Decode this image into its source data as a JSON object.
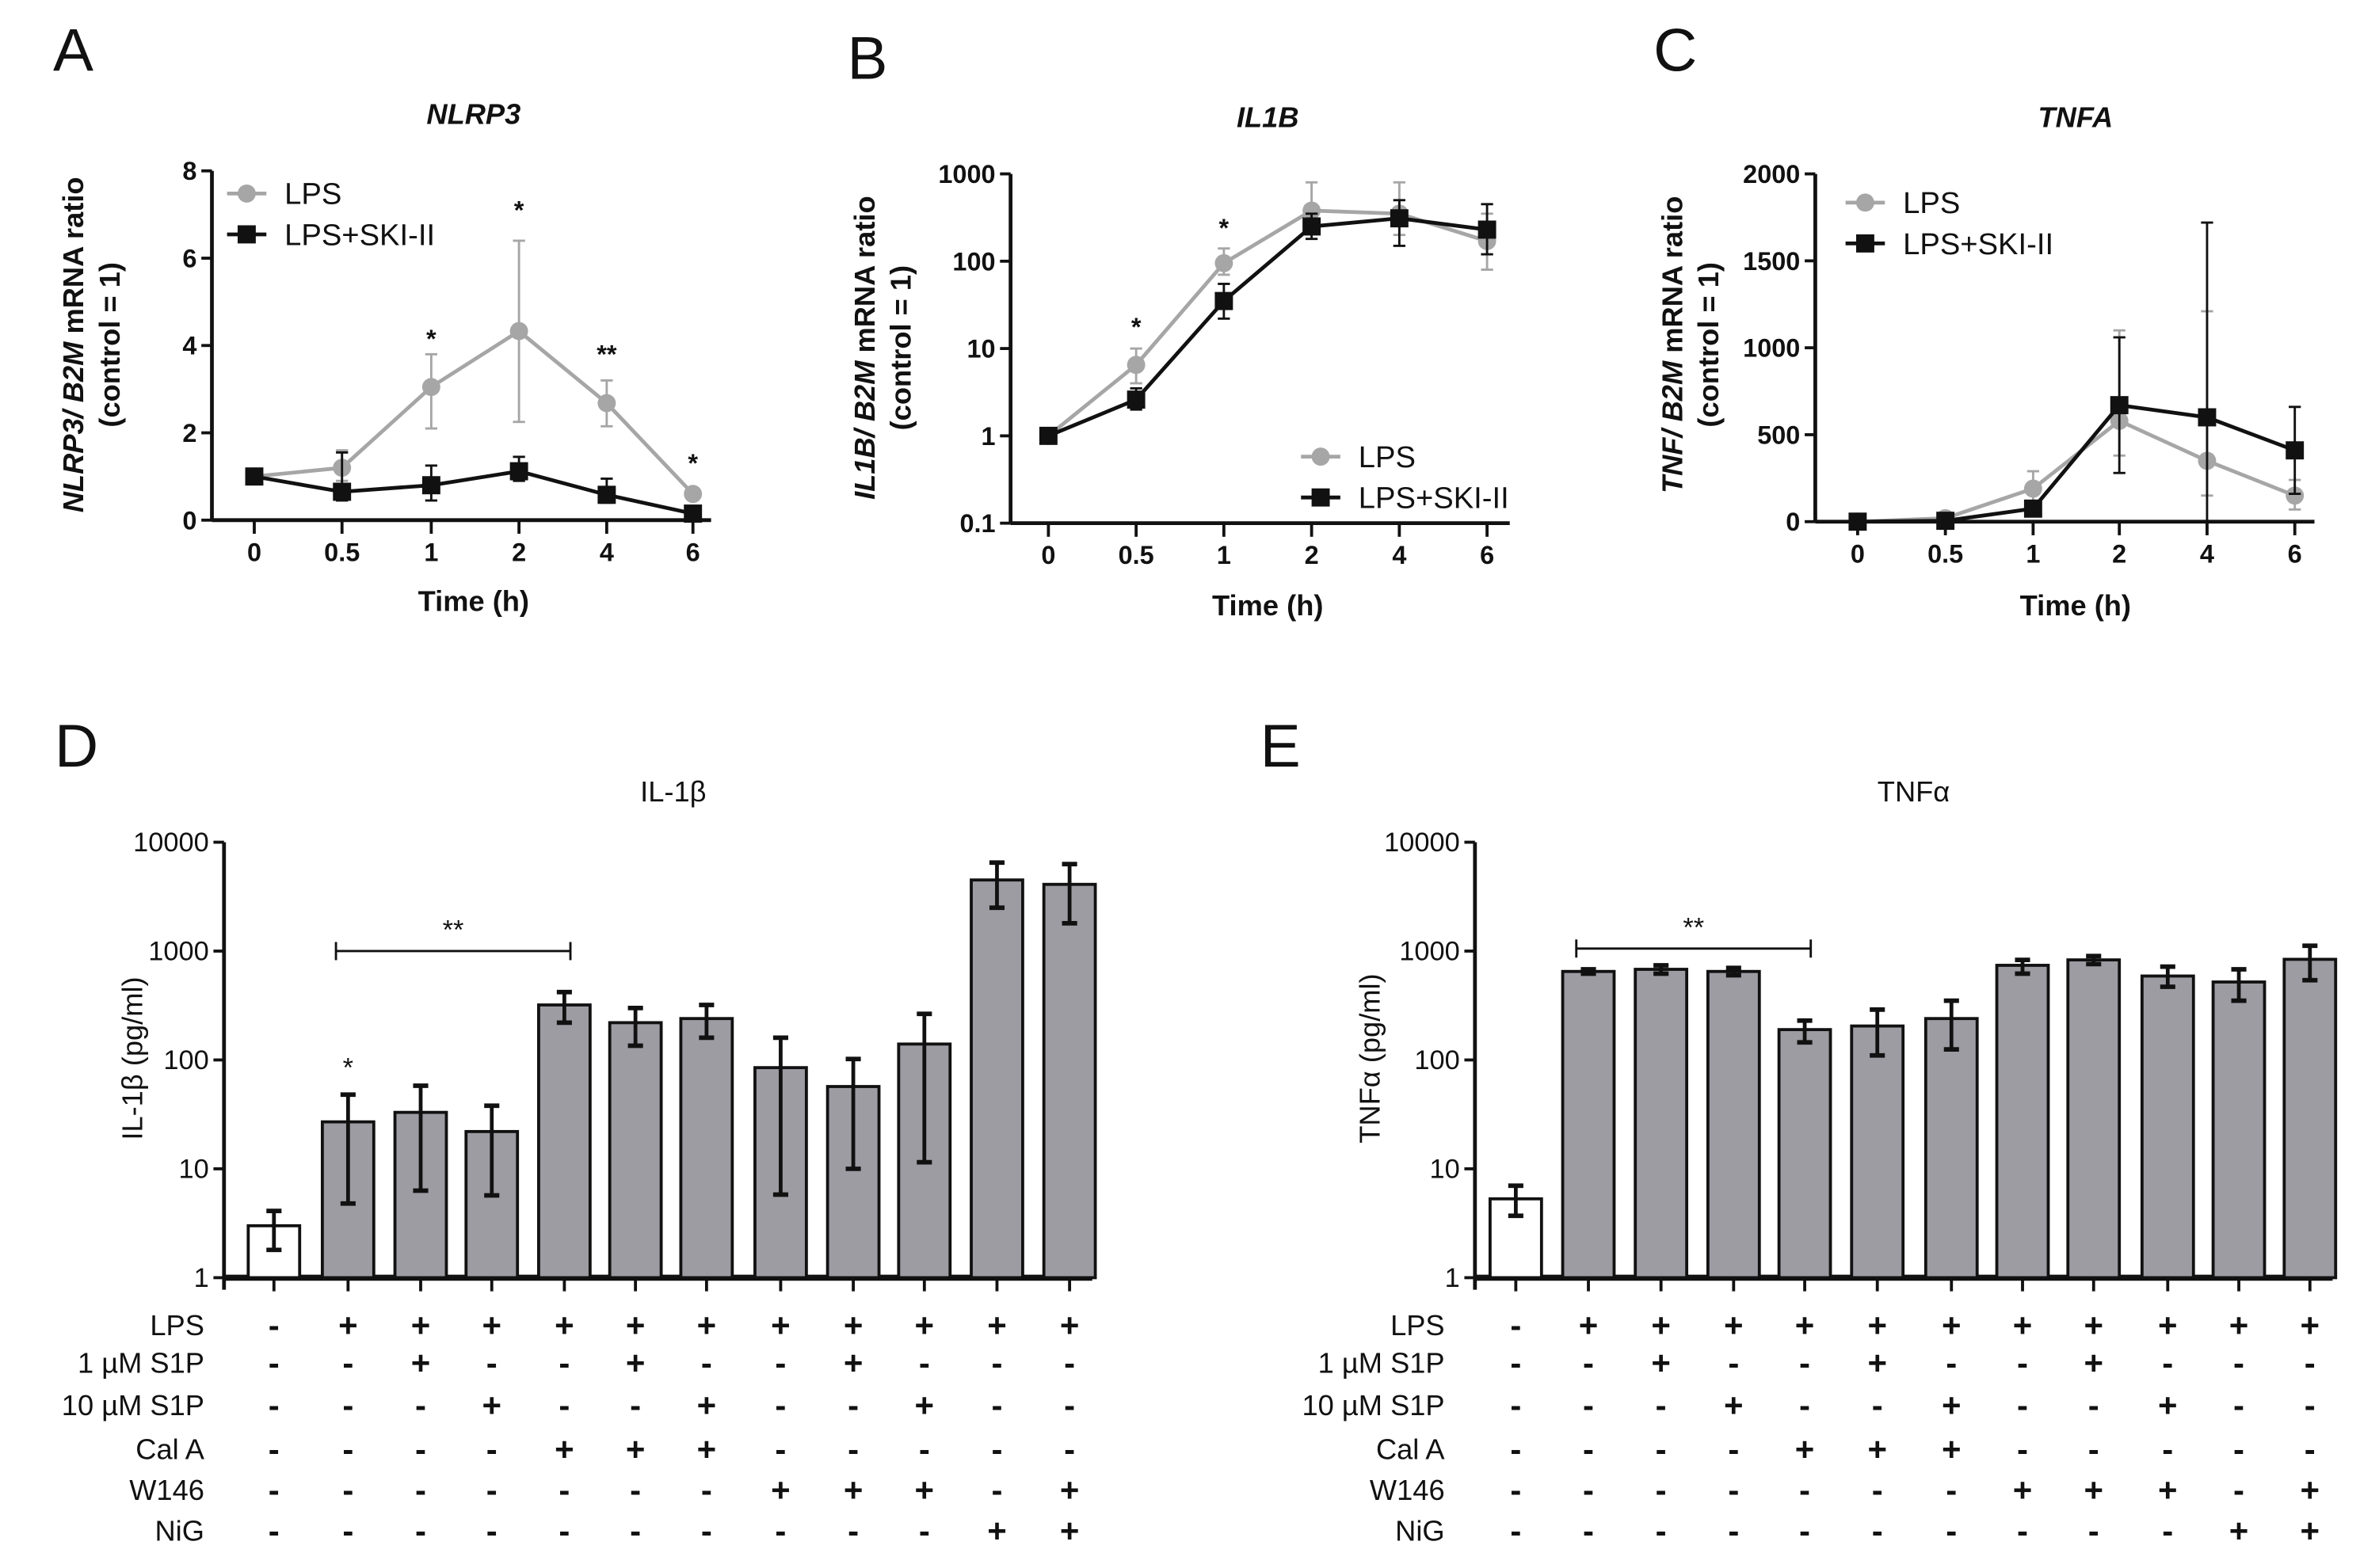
{
  "panels": {
    "A": "A",
    "B": "B",
    "C": "C",
    "D": "D",
    "E": "E"
  },
  "chart_data": [
    {
      "id": "A",
      "type": "line",
      "title": "NLRP3",
      "ylabel_italic1": "NLRP3/",
      "ylabel_italic2": " B2M",
      "ylabel_rest": " mRNA ratio",
      "ylabel_line2": "(control = 1)",
      "xlabel": "Time (h)",
      "x": [
        "0",
        "0.5",
        "1",
        "2",
        "4",
        "6"
      ],
      "yscale": "linear",
      "ylim": [
        0,
        8
      ],
      "yticks": [
        0,
        2,
        4,
        6,
        8
      ],
      "ytick_labels": [
        "0",
        "2",
        "4",
        "6",
        "8"
      ],
      "legend": "top-left",
      "series": [
        {
          "name": "LPS",
          "color": "#a6a6a6",
          "marker": "circle",
          "values": [
            1,
            1.2,
            3.05,
            4.33,
            2.68,
            0.6
          ],
          "err": [
            null,
            [
              0.9,
              1.6
            ],
            [
              2.1,
              3.8
            ],
            [
              2.25,
              6.4
            ],
            [
              2.15,
              3.2
            ],
            null
          ]
        },
        {
          "name": "LPS+SKI-II",
          "color": "#111111",
          "marker": "square",
          "values": [
            1,
            0.65,
            0.8,
            1.12,
            0.58,
            0.15
          ],
          "err": [
            null,
            [
              0.45,
              1.55
            ],
            [
              0.45,
              1.25
            ],
            [
              0.9,
              1.45
            ],
            [
              0.4,
              0.95
            ],
            null
          ]
        }
      ],
      "annotations": [
        null,
        null,
        "*",
        "*",
        "**",
        "*"
      ],
      "annotation_y": [
        null,
        null,
        3.95,
        6.9,
        3.6,
        1.1
      ]
    },
    {
      "id": "B",
      "type": "line",
      "title": "IL1B",
      "ylabel_italic1": "IL1B/",
      "ylabel_italic2": " B2M",
      "ylabel_rest": " mRNA ratio",
      "ylabel_line2": "(control = 1)",
      "xlabel": "Time (h)",
      "x": [
        "0",
        "0.5",
        "1",
        "2",
        "4",
        "6"
      ],
      "yscale": "log",
      "ylim": [
        0.1,
        1000
      ],
      "yticks": [
        0.1,
        1,
        10,
        100,
        1000
      ],
      "ytick_labels": [
        "0.1",
        "1",
        "10",
        "100",
        "1000"
      ],
      "legend": "bottom-right",
      "series": [
        {
          "name": "LPS",
          "color": "#a6a6a6",
          "marker": "circle",
          "values": [
            1,
            6.5,
            95,
            380,
            350,
            170
          ],
          "err": [
            null,
            [
              4,
              10
            ],
            [
              70,
              140
            ],
            [
              250,
              800
            ],
            [
              200,
              800
            ],
            [
              80,
              350
            ]
          ]
        },
        {
          "name": "LPS+SKI-II",
          "color": "#111111",
          "marker": "square",
          "values": [
            1,
            2.6,
            35,
            250,
            310,
            230
          ],
          "err": [
            null,
            [
              2,
              3.5
            ],
            [
              22,
              55
            ],
            [
              180,
              350
            ],
            [
              150,
              500
            ],
            [
              120,
              450
            ]
          ]
        }
      ],
      "annotations": [
        null,
        "*",
        "*",
        null,
        null,
        null
      ],
      "annotation_y": [
        null,
        14,
        190,
        null,
        null,
        null
      ]
    },
    {
      "id": "C",
      "type": "line",
      "title": "TNFA",
      "ylabel_italic1": "TNF/",
      "ylabel_italic2": " B2M",
      "ylabel_rest": " mRNA ratio",
      "ylabel_line2": "(control = 1)",
      "xlabel": "Time (h)",
      "x": [
        "0",
        "0.5",
        "1",
        "2",
        "4",
        "6"
      ],
      "yscale": "linear",
      "ylim": [
        0,
        2000
      ],
      "yticks": [
        0,
        500,
        1000,
        1500,
        2000
      ],
      "ytick_labels": [
        "0",
        "500",
        "1000",
        "1500",
        "2000"
      ],
      "legend": "top-left",
      "series": [
        {
          "name": "LPS",
          "color": "#a6a6a6",
          "marker": "circle",
          "values": [
            0,
            20,
            190,
            580,
            350,
            150
          ],
          "err": [
            null,
            null,
            [
              90,
              290
            ],
            [
              380,
              1100
            ],
            [
              150,
              1210
            ],
            [
              70,
              240
            ]
          ]
        },
        {
          "name": "LPS+SKI-II",
          "color": "#111111",
          "marker": "square",
          "values": [
            0,
            5,
            75,
            670,
            600,
            410
          ],
          "err": [
            null,
            null,
            null,
            [
              280,
              1060
            ],
            [
              0,
              1720
            ],
            [
              160,
              660
            ]
          ]
        }
      ],
      "annotations": [
        null,
        null,
        null,
        null,
        null,
        null
      ],
      "annotation_y": [
        null,
        null,
        null,
        null,
        null,
        null
      ]
    },
    {
      "id": "D",
      "type": "bar",
      "title": "IL-1β",
      "ylabel": "IL-1β (pg/ml)",
      "yscale": "log",
      "ylim": [
        1,
        10000
      ],
      "yticks": [
        1,
        10,
        100,
        1000,
        10000
      ],
      "ytick_labels": [
        "1",
        "10",
        "100",
        "1000",
        "10000"
      ],
      "values": [
        3,
        27,
        33,
        22,
        320,
        220,
        240,
        85,
        57,
        140,
        4500,
        4100
      ],
      "err": [
        [
          1.8,
          4.1
        ],
        [
          4.8,
          48
        ],
        [
          6.3,
          58
        ],
        [
          5.7,
          38
        ],
        [
          220,
          420
        ],
        [
          135,
          300
        ],
        [
          160,
          320
        ],
        [
          5.8,
          160
        ],
        [
          10,
          102
        ],
        [
          11.5,
          265
        ],
        [
          2500,
          6500
        ],
        [
          1800,
          6300
        ]
      ],
      "fill": [
        "#ffffff",
        "#9d9ca3",
        "#9d9ca3",
        "#9d9ca3",
        "#9d9ca3",
        "#9d9ca3",
        "#9d9ca3",
        "#9d9ca3",
        "#9d9ca3",
        "#9d9ca3",
        "#9d9ca3",
        "#9d9ca3"
      ],
      "bar_annotations": [
        null,
        "*",
        null,
        null,
        null,
        null,
        null,
        null,
        null,
        null,
        null,
        null
      ],
      "bracket": {
        "from": 1,
        "to": 4,
        "label": "**",
        "y": 1000
      }
    },
    {
      "id": "E",
      "type": "bar",
      "title": "TNFα",
      "ylabel": "TNFα (pg/ml)",
      "yscale": "log",
      "ylim": [
        1,
        10000
      ],
      "yticks": [
        1,
        10,
        100,
        1000,
        10000
      ],
      "ytick_labels": [
        "1",
        "10",
        "100",
        "1000",
        "10000"
      ],
      "values": [
        5.3,
        650,
        680,
        650,
        190,
        205,
        240,
        740,
        830,
        590,
        520,
        840
      ],
      "err": [
        [
          3.7,
          7
        ],
        [
          620,
          680
        ],
        [
          620,
          740
        ],
        [
          600,
          700
        ],
        [
          145,
          230
        ],
        [
          110,
          290
        ],
        [
          125,
          350
        ],
        [
          620,
          830
        ],
        [
          760,
          900
        ],
        [
          470,
          720
        ],
        [
          350,
          680
        ],
        [
          540,
          1120
        ]
      ],
      "fill": [
        "#ffffff",
        "#9d9ca3",
        "#9d9ca3",
        "#9d9ca3",
        "#9d9ca3",
        "#9d9ca3",
        "#9d9ca3",
        "#9d9ca3",
        "#9d9ca3",
        "#9d9ca3",
        "#9d9ca3",
        "#9d9ca3"
      ],
      "bar_annotations": [
        null,
        null,
        null,
        null,
        null,
        null,
        null,
        null,
        null,
        null,
        null,
        null
      ],
      "bracket": {
        "from": 1,
        "to": 4,
        "label": "**",
        "y": 2000
      }
    }
  ],
  "treatments": {
    "rows": [
      {
        "label": "LPS",
        "values": [
          "-",
          "+",
          "+",
          "+",
          "+",
          "+",
          "+",
          "+",
          "+",
          "+",
          "+",
          "+"
        ]
      },
      {
        "label": "1 µM S1P",
        "values": [
          "-",
          "-",
          "+",
          "-",
          "-",
          "+",
          "-",
          "-",
          "+",
          "-",
          "-",
          "-"
        ]
      },
      {
        "label": "10 µM  S1P",
        "values": [
          "-",
          "-",
          "-",
          "+",
          "-",
          "-",
          "+",
          "-",
          "-",
          "+",
          "-",
          "-"
        ]
      },
      {
        "label": "Cal A",
        "values": [
          "-",
          "-",
          "-",
          "-",
          "+",
          "+",
          "+",
          "-",
          "-",
          "-",
          "-",
          "-"
        ]
      },
      {
        "label": "W146",
        "values": [
          "-",
          "-",
          "-",
          "-",
          "-",
          "-",
          "-",
          "+",
          "+",
          "+",
          "-",
          "+"
        ]
      },
      {
        "label": "NiG",
        "values": [
          "-",
          "-",
          "-",
          "-",
          "-",
          "-",
          "-",
          "-",
          "-",
          "-",
          "+",
          "+"
        ]
      }
    ]
  }
}
